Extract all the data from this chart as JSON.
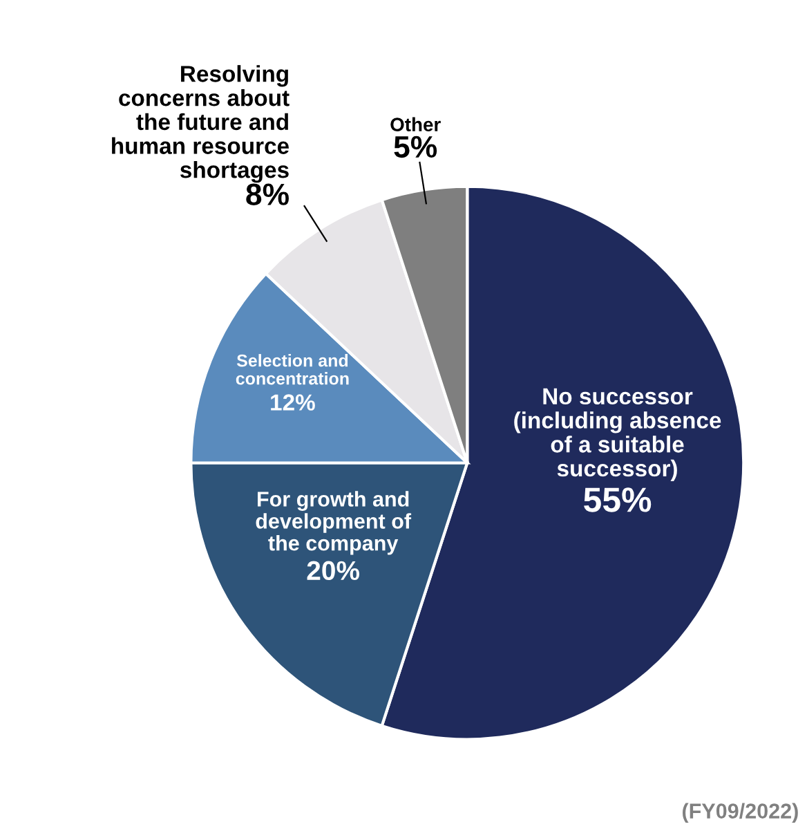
{
  "chart_data": {
    "type": "pie",
    "categories": [
      "No successor\n(including absence\nof a suitable\nsuccessor)",
      "For growth and\ndevelopment of\nthe company",
      "Selection and\nconcentration",
      "Resolving\nconcerns about\nthe future and\nhuman resource\nshortages",
      "Other"
    ],
    "values": [
      55,
      20,
      12,
      8,
      5
    ],
    "value_labels": [
      "55%",
      "20%",
      "12%",
      "8%",
      "5%"
    ],
    "colors": [
      "#1f2a5c",
      "#2e5479",
      "#5a8bbd",
      "#e7e5e8",
      "#7f7f7f"
    ],
    "annotations": [
      "(FY09/2022)"
    ],
    "legend": false
  }
}
